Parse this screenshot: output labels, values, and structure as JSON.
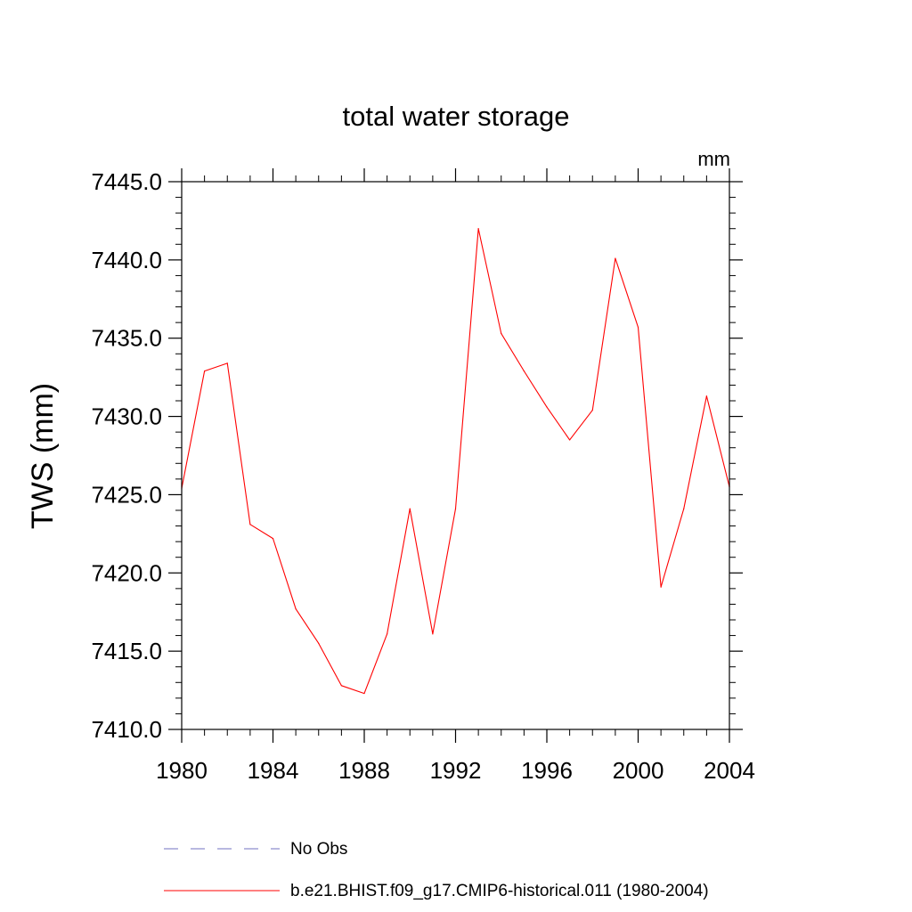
{
  "chart_data": {
    "type": "line",
    "title": "total water storage",
    "units_label": "mm",
    "ylabel": "TWS  (mm)",
    "xlabel": "",
    "xlim": [
      1980,
      2004
    ],
    "ylim": [
      7410.0,
      7445.0
    ],
    "x_ticks": [
      1980,
      1984,
      1988,
      1992,
      1996,
      2000,
      2004
    ],
    "x_tick_labels": [
      "1980",
      "1984",
      "1988",
      "1992",
      "1996",
      "2000",
      "2004"
    ],
    "y_ticks": [
      7410.0,
      7415.0,
      7420.0,
      7425.0,
      7430.0,
      7435.0,
      7440.0,
      7445.0
    ],
    "y_tick_labels": [
      "7410.0",
      "7415.0",
      "7420.0",
      "7425.0",
      "7430.0",
      "7435.0",
      "7440.0",
      "7445.0"
    ],
    "grid": false,
    "legend_position": "bottom",
    "series": [
      {
        "name": "b.e21.BHIST.f09_g17.CMIP6-historical.011 (1980-2004)",
        "color": "#ff0000",
        "style": "solid",
        "x": [
          1980,
          1981,
          1982,
          1983,
          1984,
          1985,
          1986,
          1987,
          1988,
          1989,
          1990,
          1991,
          1992,
          1993,
          1994,
          1995,
          1996,
          1997,
          1998,
          1999,
          2000,
          2001,
          2002,
          2003,
          2004
        ],
        "y": [
          7425.4,
          7432.9,
          7433.4,
          7423.1,
          7422.2,
          7417.7,
          7415.5,
          7412.8,
          7412.3,
          7416.1,
          7424.1,
          7416.1,
          7424.1,
          7442.0,
          7435.3,
          7432.9,
          7430.6,
          7428.5,
          7430.4,
          7440.1,
          7435.7,
          7419.1,
          7424.1,
          7431.3,
          7425.5
        ]
      }
    ],
    "legend": [
      {
        "label": "No Obs",
        "color": "#7070c0",
        "style": "dashed"
      },
      {
        "label": "b.e21.BHIST.f09_g17.CMIP6-historical.011 (1980-2004)",
        "color": "#ff0000",
        "style": "solid"
      }
    ]
  }
}
